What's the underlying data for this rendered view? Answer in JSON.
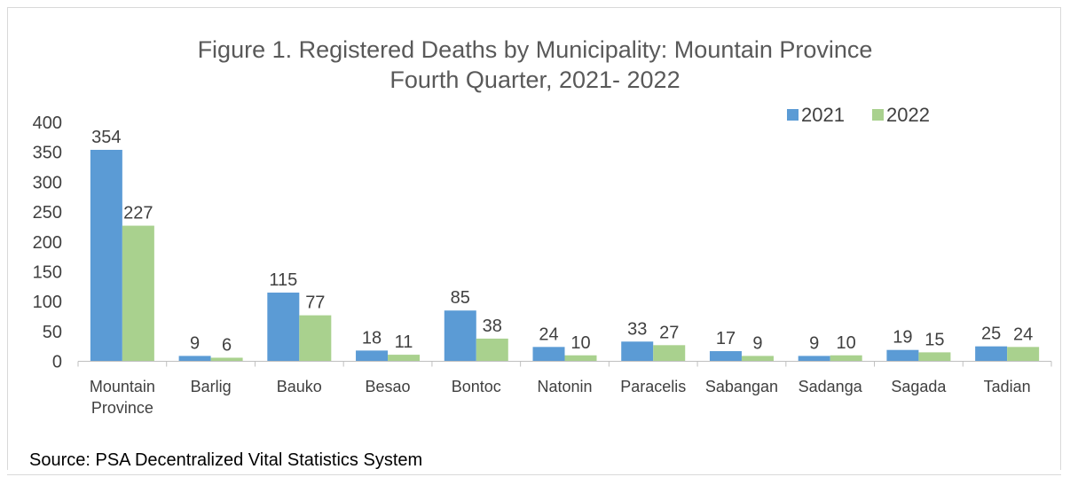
{
  "chart_data": {
    "type": "bar",
    "title": "Figure 1. Registered Deaths by Municipality: Mountain Province",
    "subtitle": "Fourth Quarter, 2021- 2022",
    "categories": [
      [
        "Mountain",
        "Province"
      ],
      [
        "Barlig"
      ],
      [
        "Bauko"
      ],
      [
        "Besao"
      ],
      [
        "Bontoc"
      ],
      [
        "Natonin"
      ],
      [
        "Paracelis"
      ],
      [
        "Sabangan"
      ],
      [
        "Sadanga"
      ],
      [
        "Sagada"
      ],
      [
        "Tadian"
      ]
    ],
    "series": [
      {
        "name": "2021",
        "color": "#5b9bd5",
        "values": [
          354,
          9,
          115,
          18,
          85,
          24,
          33,
          17,
          9,
          19,
          25
        ]
      },
      {
        "name": "2022",
        "color": "#a9d18e",
        "values": [
          227,
          6,
          77,
          11,
          38,
          10,
          27,
          9,
          10,
          15,
          24
        ]
      }
    ],
    "ylim": [
      0,
      400
    ],
    "yticks": [
      0,
      50,
      100,
      150,
      200,
      250,
      300,
      350,
      400
    ],
    "legend_position": "top-right",
    "grid": false,
    "data_labels": true
  },
  "source": "Source: PSA Decentralized Vital Statistics System"
}
